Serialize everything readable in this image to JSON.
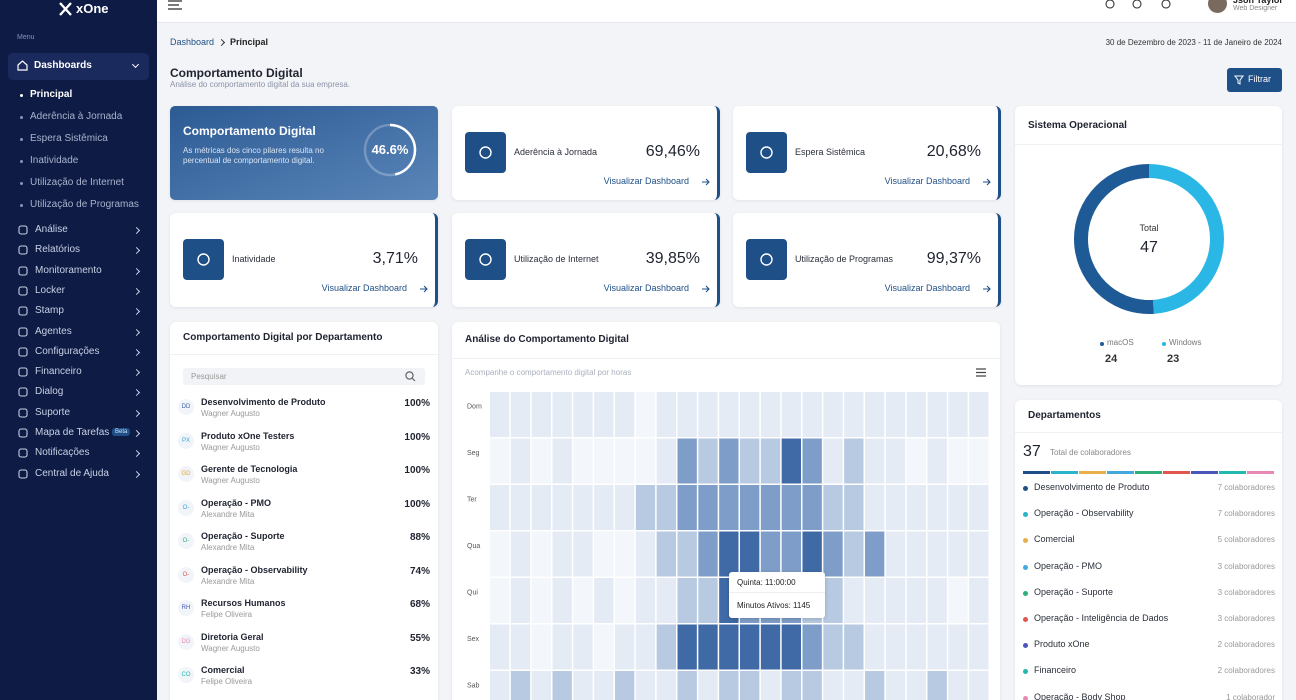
{
  "sidebar": {
    "logo": "xOne",
    "menu_label": "Menu",
    "items": [
      {
        "label": "Dashboards",
        "children": [
          "Principal",
          "Aderência à Jornada",
          "Espera Sistêmica",
          "Inatividade",
          "Utilização de Internet",
          "Utilização de Programas"
        ]
      },
      {
        "label": "Análise"
      },
      {
        "label": "Relatórios"
      },
      {
        "label": "Monitoramento"
      },
      {
        "label": "Locker"
      },
      {
        "label": "Stamp"
      },
      {
        "label": "Agentes"
      },
      {
        "label": "Configurações"
      },
      {
        "label": "Financeiro"
      },
      {
        "label": "Dialog"
      },
      {
        "label": "Suporte"
      },
      {
        "label": "Mapa de Tarefas",
        "badge": "Beta"
      },
      {
        "label": "Notificações"
      },
      {
        "label": "Central de Ajuda"
      }
    ]
  },
  "topbar": {
    "user_name": "Jsoh Taylor",
    "user_role": "Web Designer"
  },
  "breadcrumb": [
    "Dashboard",
    "Principal"
  ],
  "date_range": "30 de Dezembro de 2023 - 11 de Janeiro de 2024",
  "page": {
    "title": "Comportamento Digital",
    "subtitle": "Análise do comportamento digital da sua empresa.",
    "filter_button": "Filtrar"
  },
  "hero": {
    "title": "Comportamento Digital",
    "description": [
      "As métricas dos cinco pilares resulta no",
      "percentual de comportamento digital."
    ],
    "percent": 46.6,
    "percent_label": "46.6%"
  },
  "metrics": [
    {
      "title": "Aderência à Jornada",
      "value": "69,46%",
      "link": "Visualizar Dashboard"
    },
    {
      "title": "Espera Sistêmica",
      "value": "20,68%",
      "link": "Visualizar Dashboard"
    },
    {
      "title": "Inatividade",
      "value": "3,71%",
      "link": "Visualizar Dashboard"
    },
    {
      "title": "Utilização de Internet",
      "value": "39,85%",
      "link": "Visualizar Dashboard"
    },
    {
      "title": "Utilização de Programas",
      "value": "99,37%",
      "link": "Visualizar Dashboard"
    }
  ],
  "os_card": {
    "title": "Sistema Operacional",
    "total_label": "Total",
    "total": 47,
    "segments": [
      {
        "name": "macOS",
        "value": 24,
        "color": "#1e5a96"
      },
      {
        "name": "Windows",
        "value": 23,
        "color": "#2bb7e6"
      }
    ]
  },
  "departments_card": {
    "title": "Departamentos",
    "total": 37,
    "total_label": "Total de colaboradores",
    "items": [
      {
        "name": "Desenvolvimento de Produto",
        "count": "7 colaboradores",
        "color": "#1e4f86"
      },
      {
        "name": "Operação - Observability",
        "count": "7 colaboradores",
        "color": "#2ab3c9"
      },
      {
        "name": "Comercial",
        "count": "5 colaboradores",
        "color": "#e8b04a"
      },
      {
        "name": "Operação - PMO",
        "count": "3 colaboradores",
        "color": "#42a8dd"
      },
      {
        "name": "Operação - Suporte",
        "count": "3 colaboradores",
        "color": "#2fae7a"
      },
      {
        "name": "Operação - Inteligência de Dados",
        "count": "3 colaboradores",
        "color": "#e0574f"
      },
      {
        "name": "Produto xOne",
        "count": "2 colaboradores",
        "color": "#4a56b8"
      },
      {
        "name": "Financeiro",
        "count": "2 colaboradores",
        "color": "#21b8b0"
      },
      {
        "name": "Operação - Body Shop",
        "count": "1 colaborador",
        "color": "#e889b4"
      }
    ]
  },
  "department_behavior": {
    "title": "Comportamento Digital por Departamento",
    "search_placeholder": "Pesquisar",
    "rows": [
      {
        "initials": "DD",
        "name": "Desenvolvimento de Produto",
        "manager": "Wagner Augusto",
        "percent": "100%",
        "color": "#3d63a8"
      },
      {
        "initials": "PX",
        "name": "Produto xOne Testers",
        "manager": "Wagner Augusto",
        "percent": "100%",
        "color": "#3aa7d6"
      },
      {
        "initials": "GD",
        "name": "Gerente de Tecnologia",
        "manager": "Wagner Augusto",
        "percent": "100%",
        "color": "#e0a93a"
      },
      {
        "initials": "O-",
        "name": "Operação - PMO",
        "manager": "Alexandre Mita",
        "percent": "100%",
        "color": "#3aa7d6"
      },
      {
        "initials": "O-",
        "name": "Operação - Suporte",
        "manager": "Alexandre Mita",
        "percent": "88%",
        "color": "#2fae7a"
      },
      {
        "initials": "O-",
        "name": "Operação - Observability",
        "manager": "Alexandre Mita",
        "percent": "74%",
        "color": "#e0574f"
      },
      {
        "initials": "RH",
        "name": "Recursos Humanos",
        "manager": "Felipe Oliveira",
        "percent": "68%",
        "color": "#4a56b8"
      },
      {
        "initials": "DG",
        "name": "Diretoria Geral",
        "manager": "Wagner Augusto",
        "percent": "55%",
        "color": "#e889b4"
      },
      {
        "initials": "CO",
        "name": "Comercial",
        "manager": "Felipe Oliveira",
        "percent": "33%",
        "color": "#21b8b0"
      }
    ]
  },
  "heatmap": {
    "title": "Análise do Comportamento Digital",
    "subtitle": "Acompanhe o comportamento digital por horas",
    "days": [
      "Dom",
      "Seg",
      "Ter",
      "Qua",
      "Qui",
      "Sex",
      "Sab"
    ],
    "values": [
      [
        1,
        1,
        1,
        1,
        1,
        1,
        1,
        0,
        1,
        1,
        1,
        1,
        1,
        1,
        1,
        1,
        1,
        1,
        1,
        1,
        1,
        1,
        1,
        1
      ],
      [
        0,
        1,
        0,
        1,
        0,
        0,
        0,
        0,
        1,
        3,
        2,
        3,
        2,
        2,
        4,
        3,
        1,
        2,
        1,
        1,
        0,
        1,
        0,
        0
      ],
      [
        1,
        1,
        1,
        1,
        1,
        1,
        1,
        2,
        2,
        3,
        3,
        3,
        3,
        3,
        3,
        3,
        2,
        2,
        1,
        1,
        1,
        1,
        1,
        1
      ],
      [
        0,
        1,
        0,
        1,
        1,
        0,
        0,
        1,
        2,
        2,
        3,
        4,
        4,
        3,
        3,
        4,
        3,
        2,
        3,
        1,
        1,
        1,
        1,
        1
      ],
      [
        0,
        1,
        0,
        1,
        0,
        1,
        0,
        1,
        1,
        2,
        2,
        4,
        3,
        3,
        3,
        2,
        2,
        1,
        1,
        1,
        1,
        1,
        0,
        1
      ],
      [
        1,
        1,
        0,
        1,
        1,
        0,
        1,
        1,
        2,
        4,
        4,
        4,
        4,
        4,
        4,
        3,
        2,
        2,
        1,
        1,
        1,
        1,
        1,
        1
      ],
      [
        1,
        2,
        1,
        2,
        1,
        1,
        2,
        1,
        1,
        2,
        1,
        2,
        2,
        1,
        2,
        2,
        1,
        1,
        2,
        1,
        1,
        2,
        1,
        1
      ]
    ],
    "tooltip": {
      "title": "Quinta: 11:00:00",
      "text": "Minutos Ativos: 1145"
    }
  }
}
